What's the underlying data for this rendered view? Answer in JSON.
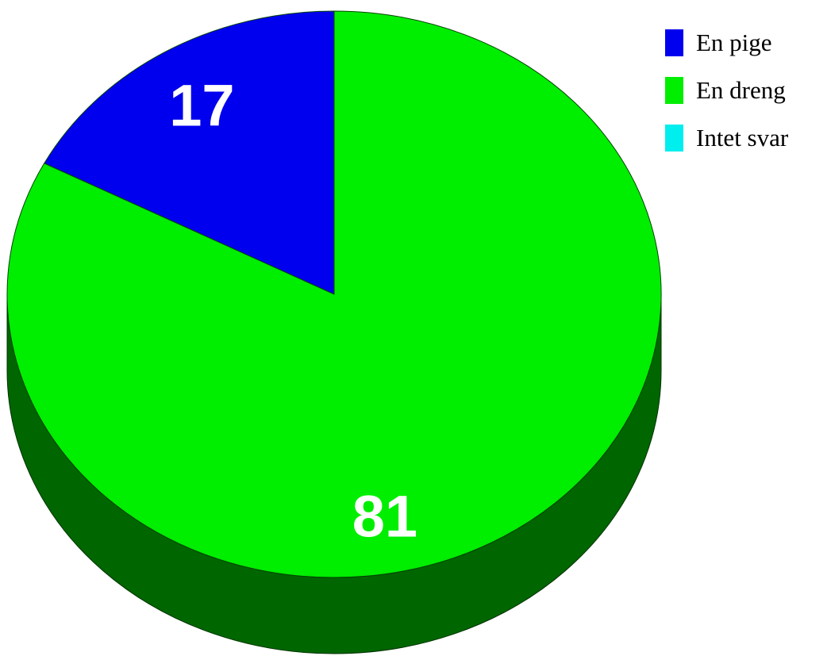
{
  "chart_data": {
    "type": "pie",
    "title": "",
    "slices": [
      {
        "label": "En pige",
        "value": 17,
        "color": "#0000ee",
        "value_label": "17"
      },
      {
        "label": "En dreng",
        "value": 81,
        "color": "#00ee00",
        "value_label": "81"
      },
      {
        "label": "Intet svar",
        "value": 0,
        "color": "#00eeee",
        "value_label": ""
      }
    ],
    "depth_color": "#006600",
    "legend_position": "top-right",
    "style": "3d"
  }
}
